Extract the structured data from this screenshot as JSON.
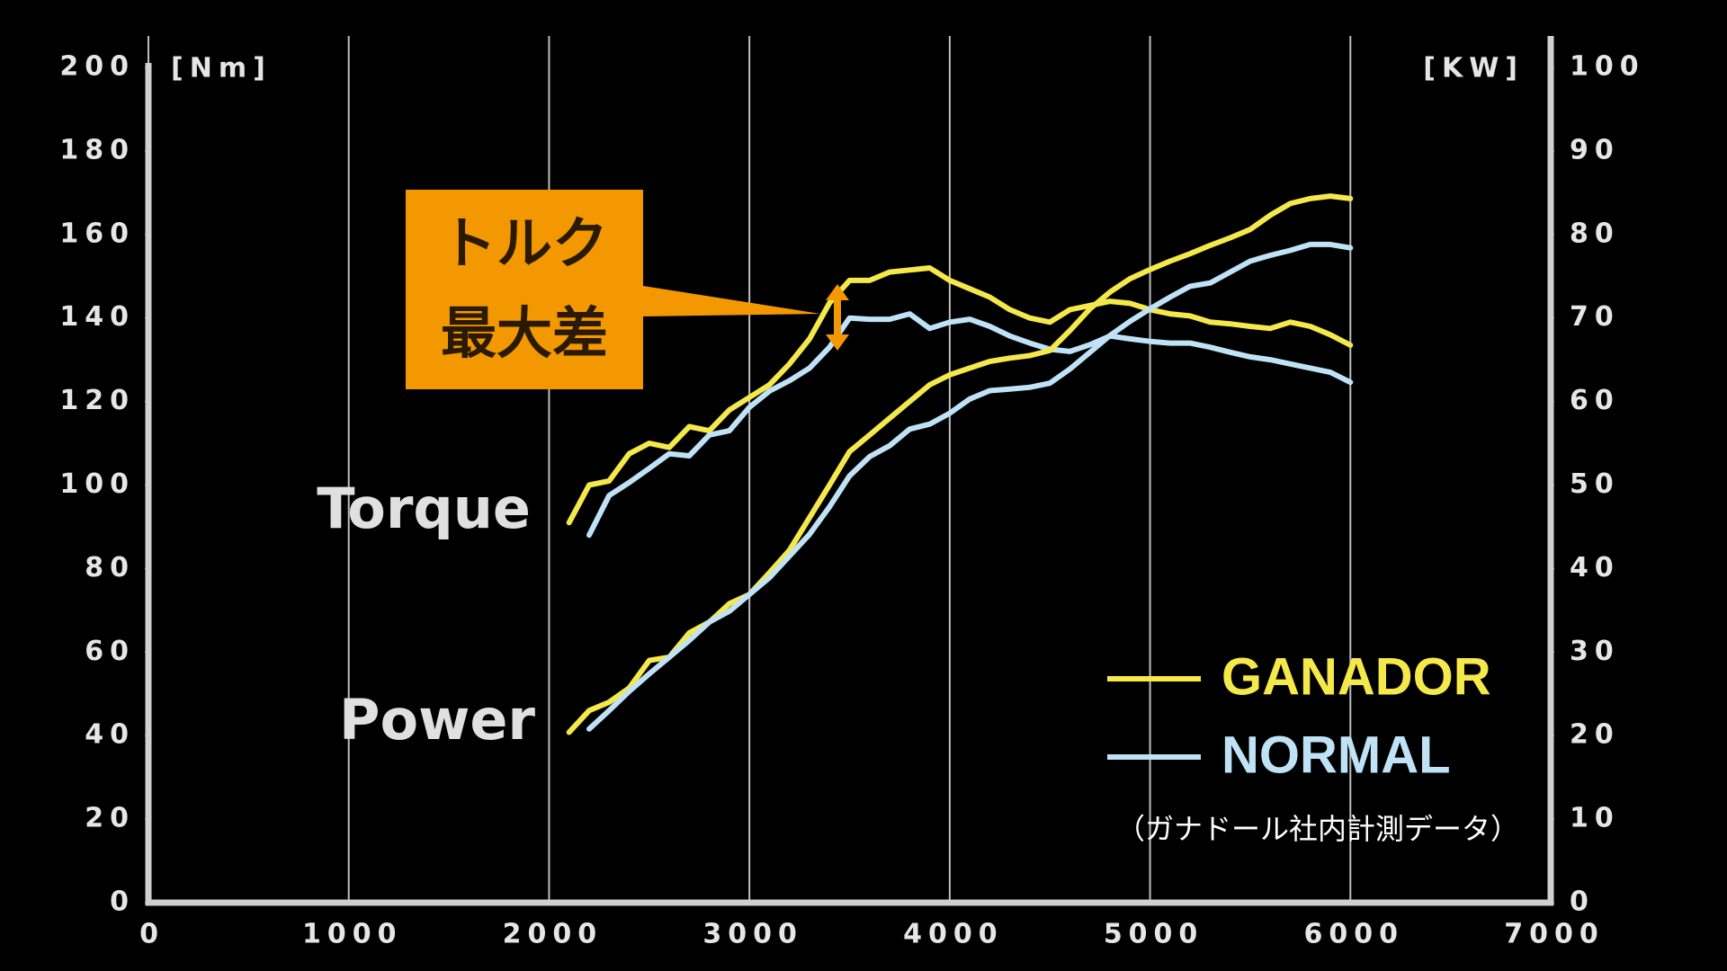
{
  "chart_data": {
    "type": "line",
    "y_unit": "[Nm]",
    "y2_unit": "[KW]",
    "x": [
      2100,
      2200,
      2300,
      2400,
      2500,
      2600,
      2700,
      2800,
      2900,
      3000,
      3100,
      3200,
      3300,
      3400,
      3500,
      3600,
      3700,
      3800,
      3900,
      4000,
      4100,
      4200,
      4300,
      4400,
      4500,
      4600,
      4700,
      4800,
      4900,
      5000,
      5100,
      5200,
      5300,
      5400,
      5500,
      5600,
      5700,
      5800,
      5900,
      6000
    ],
    "series": [
      {
        "name": "GANADOR",
        "color": "#f5e84a",
        "values": [
          91,
          100,
          101,
          107.5,
          110,
          109,
          114,
          113,
          118,
          121,
          124,
          129,
          135,
          143.6,
          149,
          149,
          151,
          151.5,
          152,
          149,
          147,
          145,
          142,
          140,
          139,
          142,
          143,
          144,
          143.5,
          142,
          141,
          140.5,
          139,
          138.6,
          138,
          137.5,
          139,
          138,
          136,
          133.5
        ]
      },
      {
        "name": "NORMAL",
        "color": "#bfe2f6",
        "values": [
          null,
          88,
          97.5,
          100.6,
          104,
          107.5,
          107,
          112,
          113,
          118.6,
          122.5,
          125,
          128,
          133,
          140,
          139.7,
          139.7,
          141,
          137.5,
          139,
          139.7,
          138,
          135.7,
          134,
          132.5,
          132,
          133.6,
          135.7,
          135,
          134.4,
          134,
          134,
          133,
          131.8,
          130.7,
          130,
          129,
          128,
          127,
          124.6
        ]
      },
      {
        "color": "#f5e84a",
        "axis": "y2",
        "values": [
          20.4,
          23,
          24,
          25.7,
          29,
          29.4,
          32.3,
          33.6,
          35.8,
          36.9,
          39.5,
          42.2,
          46.1,
          50,
          54,
          56,
          58,
          60,
          62,
          63.2,
          64,
          64.8,
          65.2,
          65.5,
          66.1,
          68.5,
          71.1,
          73.1,
          74.7,
          75.8,
          76.8,
          77.7,
          78.7,
          79.6,
          80.6,
          82.3,
          83.7,
          84.3,
          84.6,
          84.3
        ]
      },
      {
        "color": "#bfe2f6",
        "axis": "y2",
        "values": [
          null,
          20.8,
          23,
          25.3,
          27.4,
          29.4,
          31.4,
          33.6,
          34.9,
          36.9,
          38.9,
          41.5,
          44.1,
          47.4,
          51.1,
          53.4,
          54.7,
          56.7,
          57.3,
          58.6,
          60.3,
          61.3,
          61.5,
          61.7,
          62.2,
          63.9,
          65.9,
          67.9,
          69.6,
          71.1,
          72.5,
          73.8,
          74.2,
          75.5,
          76.8,
          77.5,
          78.1,
          78.8,
          78.8,
          78.4
        ]
      }
    ],
    "xlim": [
      0,
      7000
    ],
    "xticks": [
      0,
      1000,
      2000,
      3000,
      4000,
      5000,
      6000,
      7000
    ],
    "ylim": [
      0,
      200
    ],
    "yticks": [
      0,
      20,
      40,
      60,
      80,
      100,
      120,
      140,
      160,
      180,
      200
    ],
    "y2lim": [
      0,
      100
    ],
    "y2ticks": [
      0,
      10,
      20,
      30,
      40,
      50,
      60,
      70,
      80,
      90,
      100
    ],
    "grid": true,
    "annotations": {
      "torque": "Torque",
      "power": "Power",
      "callout": [
        "トルク",
        "最大差"
      ],
      "note": "（ガナドール社内計測データ）"
    }
  }
}
